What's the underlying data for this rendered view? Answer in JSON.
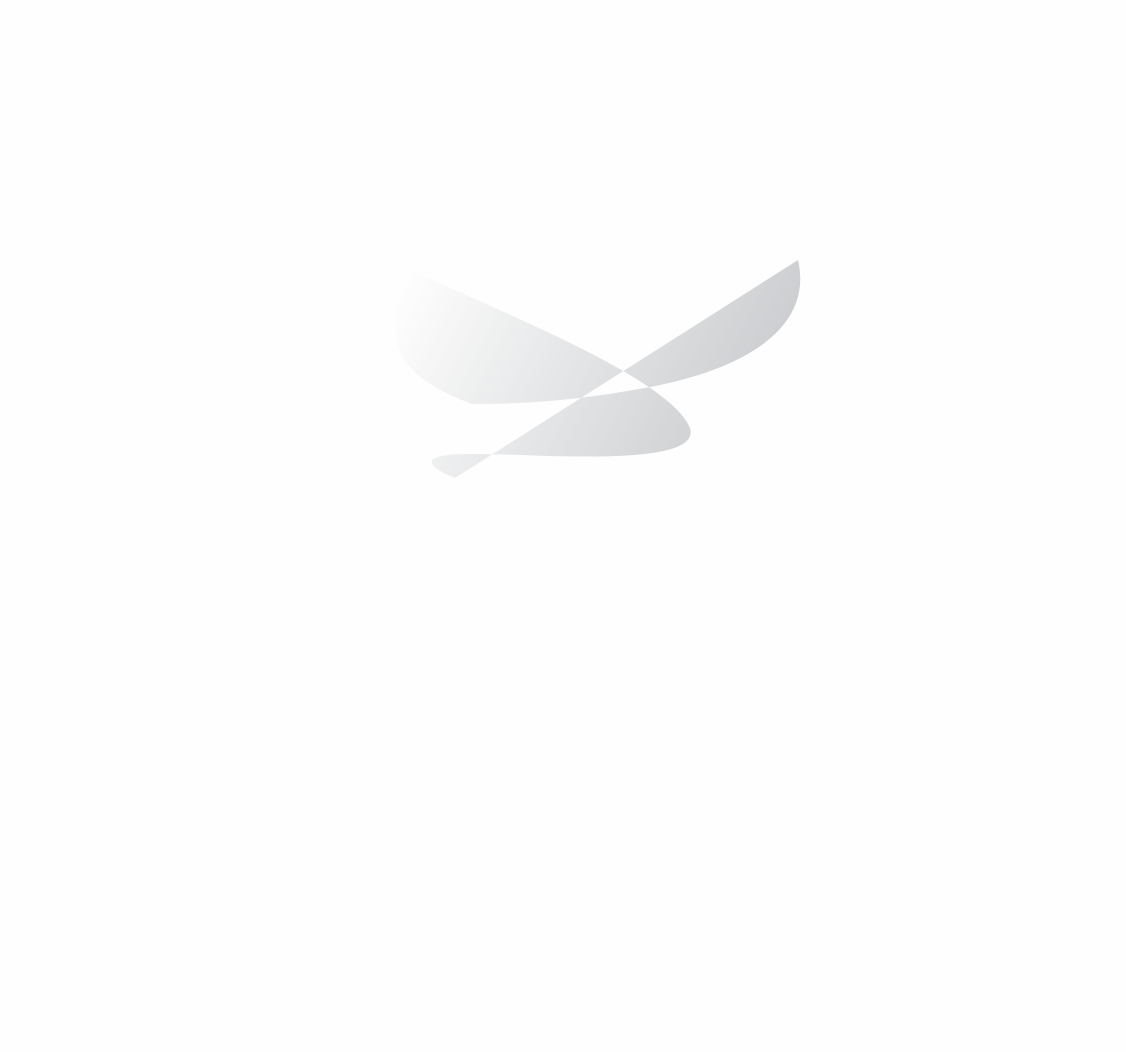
{
  "graphic": {
    "icon": "abstract-bird-logo-icon",
    "gradient_start": "#ffffff",
    "gradient_end": "#c2c4c7",
    "background": "#fefefe"
  }
}
